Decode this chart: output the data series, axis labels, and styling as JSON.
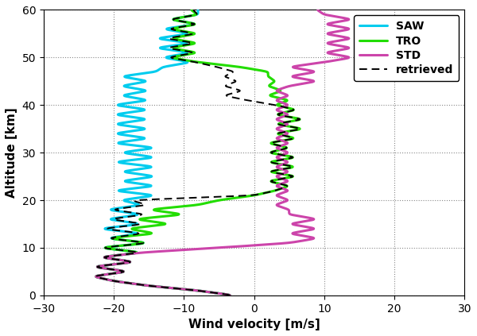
{
  "title": "",
  "xlabel": "Wind velocity [m/s]",
  "ylabel": "Altitude [km]",
  "xlim": [
    -30,
    30
  ],
  "ylim": [
    0,
    60
  ],
  "xticks": [
    -30,
    -20,
    -10,
    0,
    10,
    20,
    30
  ],
  "yticks": [
    0,
    10,
    20,
    30,
    40,
    50,
    60
  ],
  "grid_color": "#888888",
  "background_color": "#ffffff",
  "tro_color": "#22dd00",
  "std_color": "#cc44aa",
  "saw_color": "#00ccee",
  "retrieved_color": "#000000",
  "tro_linewidth": 2.2,
  "std_linewidth": 2.2,
  "saw_linewidth": 2.2,
  "retrieved_linewidth": 1.4,
  "legend_fontsize": 10,
  "axis_fontsize": 11,
  "tick_fontsize": 10
}
